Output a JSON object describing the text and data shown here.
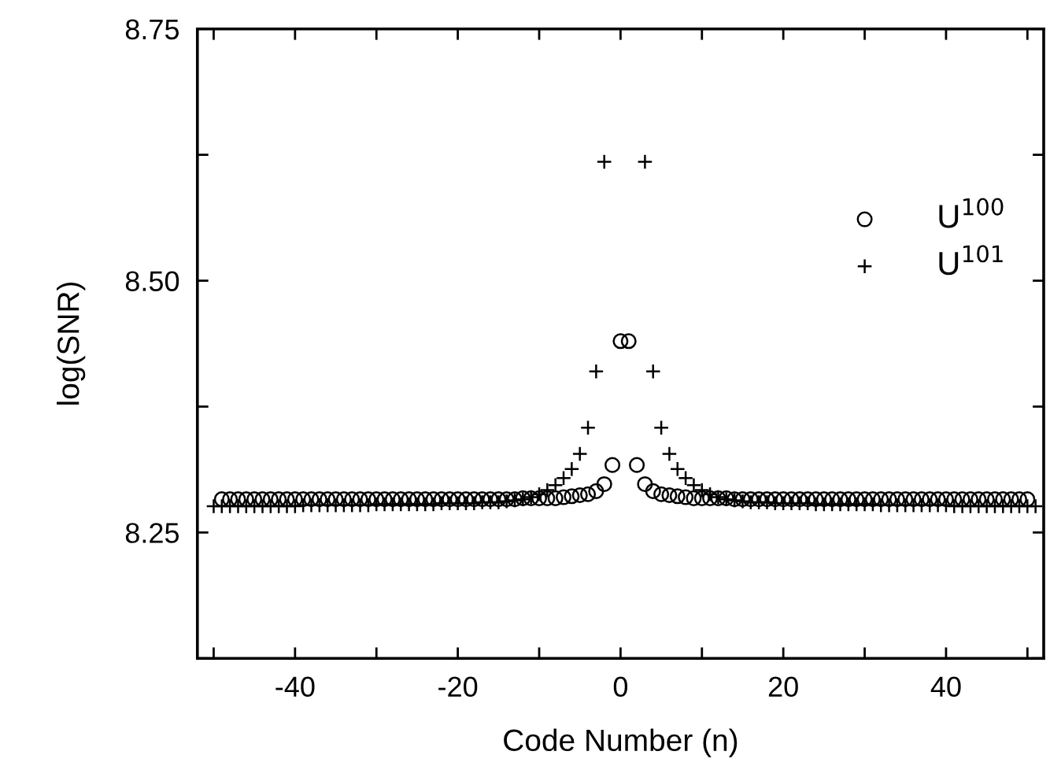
{
  "chart_data": {
    "type": "scatter",
    "xlabel": "Code Number (n)",
    "ylabel": "log(SNR)",
    "xlim": [
      -52,
      52
    ],
    "xticks": [
      {
        "value": -50,
        "label": null
      },
      -40,
      {
        "value": -30,
        "label": null
      },
      -20,
      {
        "value": -10,
        "label": null
      },
      0,
      {
        "value": 10,
        "label": null
      },
      20,
      {
        "value": 30,
        "label": null
      },
      40,
      {
        "value": 50,
        "label": null
      }
    ],
    "ylim": [
      8.125,
      8.75
    ],
    "yticks": [
      {
        "value": 8.125,
        "label": null
      },
      {
        "value": 8.25,
        "label": "8.25"
      },
      {
        "value": 8.375,
        "label": null
      },
      {
        "value": 8.5,
        "label": "8.50"
      },
      {
        "value": 8.625,
        "label": null
      },
      {
        "value": 8.75,
        "label": "8.75"
      }
    ],
    "grid": false,
    "legend": "right",
    "series": [
      {
        "name": "U$^{100}$",
        "color": "#000000",
        "marker": "circle",
        "x": [
          -49,
          -48,
          -47,
          -46,
          -45,
          -44,
          -43,
          -42,
          -41,
          -40,
          -39,
          -38,
          -37,
          -36,
          -35,
          -34,
          -33,
          -32,
          -31,
          -30,
          -29,
          -28,
          -27,
          -26,
          -25,
          -24,
          -23,
          -22,
          -21,
          -20,
          -19,
          -18,
          -17,
          -16,
          -15,
          -14,
          -13,
          -12,
          -11,
          -10,
          -9,
          -8,
          -7,
          -6,
          -5,
          -4,
          -3,
          -2,
          -1,
          0,
          1,
          2,
          3,
          4,
          5,
          6,
          7,
          8,
          9,
          10,
          11,
          12,
          13,
          14,
          15,
          16,
          17,
          18,
          19,
          20,
          21,
          22,
          23,
          24,
          25,
          26,
          27,
          28,
          29,
          30,
          31,
          32,
          33,
          34,
          35,
          36,
          37,
          38,
          39,
          40,
          41,
          42,
          43,
          44,
          45,
          46,
          47,
          48,
          49,
          50
        ],
        "values": [
          8.283,
          8.283,
          8.283,
          8.283,
          8.283,
          8.283,
          8.283,
          8.283,
          8.283,
          8.283,
          8.283,
          8.283,
          8.283,
          8.283,
          8.283,
          8.283,
          8.283,
          8.283,
          8.283,
          8.283,
          8.283,
          8.283,
          8.283,
          8.283,
          8.283,
          8.283,
          8.283,
          8.283,
          8.283,
          8.283,
          8.283,
          8.283,
          8.283,
          8.283,
          8.283,
          8.283,
          8.283,
          8.284,
          8.284,
          8.284,
          8.284,
          8.284,
          8.285,
          8.286,
          8.287,
          8.288,
          8.291,
          8.298,
          8.317,
          8.44,
          8.44,
          8.317,
          8.298,
          8.291,
          8.288,
          8.287,
          8.286,
          8.285,
          8.284,
          8.284,
          8.284,
          8.284,
          8.284,
          8.283,
          8.283,
          8.283,
          8.283,
          8.283,
          8.283,
          8.283,
          8.283,
          8.283,
          8.283,
          8.283,
          8.283,
          8.283,
          8.283,
          8.283,
          8.283,
          8.283,
          8.283,
          8.283,
          8.283,
          8.283,
          8.283,
          8.283,
          8.283,
          8.283,
          8.283,
          8.283,
          8.283,
          8.283,
          8.283,
          8.283,
          8.283,
          8.283,
          8.283,
          8.283,
          8.283,
          8.283
        ]
      },
      {
        "name": "U$^{101}$",
        "color": "#000000",
        "marker": "cross",
        "x": [
          -50,
          -49,
          -48,
          -47,
          -46,
          -45,
          -44,
          -43,
          -42,
          -41,
          -40,
          -39,
          -38,
          -37,
          -36,
          -35,
          -34,
          -33,
          -32,
          -31,
          -30,
          -29,
          -28,
          -27,
          -26,
          -25,
          -24,
          -23,
          -22,
          -21,
          -20,
          -19,
          -18,
          -17,
          -16,
          -15,
          -14,
          -13,
          -12,
          -11,
          -10,
          -9,
          -8,
          -7,
          -6,
          -5,
          -4,
          -3,
          -2,
          -1,
          0,
          1,
          2,
          3,
          4,
          5,
          6,
          7,
          8,
          9,
          10,
          11,
          12,
          13,
          14,
          15,
          16,
          17,
          18,
          19,
          20,
          21,
          22,
          23,
          24,
          25,
          26,
          27,
          28,
          29,
          30,
          31,
          32,
          33,
          34,
          35,
          36,
          37,
          38,
          39,
          40,
          41,
          42,
          43,
          44,
          45,
          46,
          47,
          48,
          49,
          50,
          51
        ],
        "values": [
          8.276,
          8.276,
          8.276,
          8.276,
          8.276,
          8.276,
          8.276,
          8.276,
          8.276,
          8.276,
          8.276,
          8.277,
          8.277,
          8.277,
          8.277,
          8.277,
          8.277,
          8.277,
          8.277,
          8.277,
          8.278,
          8.278,
          8.278,
          8.278,
          8.278,
          8.278,
          8.278,
          8.278,
          8.279,
          8.279,
          8.279,
          8.279,
          8.279,
          8.28,
          8.28,
          8.28,
          8.281,
          8.282,
          8.283,
          8.285,
          8.288,
          8.292,
          8.297,
          8.304,
          8.313,
          8.328,
          8.354,
          8.41,
          8.618,
          null,
          null,
          null,
          null,
          8.618,
          8.41,
          8.354,
          8.328,
          8.313,
          8.304,
          8.297,
          8.292,
          8.288,
          8.285,
          8.283,
          8.282,
          8.281,
          8.28,
          8.28,
          8.28,
          8.279,
          8.279,
          8.279,
          8.279,
          8.279,
          8.278,
          8.278,
          8.278,
          8.278,
          8.278,
          8.278,
          8.278,
          8.278,
          8.277,
          8.277,
          8.277,
          8.277,
          8.277,
          8.277,
          8.277,
          8.277,
          8.277,
          8.276,
          8.276,
          8.276,
          8.276,
          8.276,
          8.276,
          8.276,
          8.276,
          8.276,
          8.276,
          8.276
        ]
      }
    ]
  }
}
